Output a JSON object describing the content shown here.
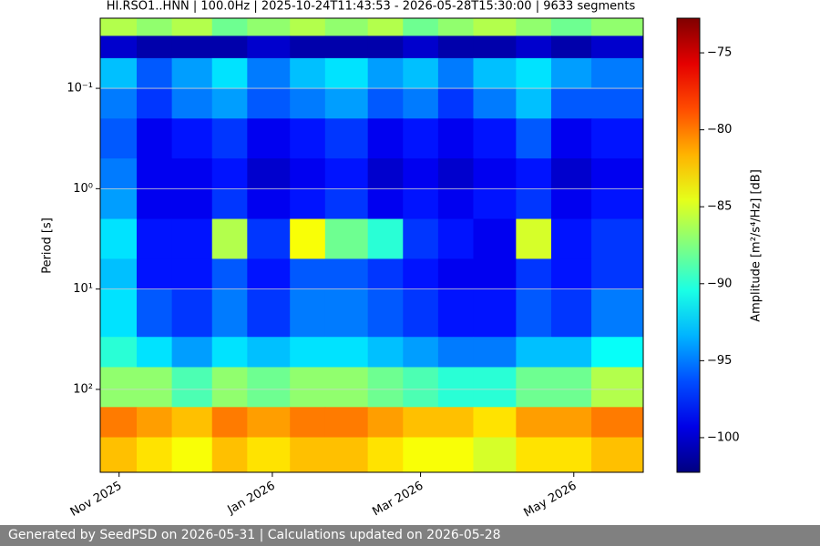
{
  "chart_data": {
    "type": "spectrogram",
    "title": "HI.RSO1..HNN | 100.0Hz | 2025-10-24T11:43:53 - 2026-05-28T15:30:00 | 9633 segments",
    "y_label": "Period [s]",
    "colorbar_label": "Amplitude [m²/s⁴/Hz] [dB]",
    "colormap": "jet",
    "y_log": true,
    "y_inverted": true,
    "grid": true,
    "xlim": [
      "2025-10-24T11:43:53",
      "2026-05-28T15:30:00"
    ],
    "xticks": [
      {
        "value": "2025-11",
        "label": "Nov 2025"
      },
      {
        "value": "2026-01",
        "label": "Jan 2026"
      },
      {
        "value": "2026-03",
        "label": "Mar 2026"
      },
      {
        "value": "2026-05",
        "label": "May 2026"
      }
    ],
    "ylim": [
      0.02,
      670
    ],
    "yticks": [
      {
        "value": 0.1,
        "label": "10⁻¹"
      },
      {
        "value": 1,
        "label": "10⁰"
      },
      {
        "value": 10,
        "label": "10¹"
      },
      {
        "value": 100,
        "label": "10²"
      }
    ],
    "clim": [
      -102.25,
      -72.75
    ],
    "cticks": [
      {
        "value": -100,
        "label": "−100"
      },
      {
        "value": -95,
        "label": "−95"
      },
      {
        "value": -90,
        "label": "−90"
      },
      {
        "value": -85,
        "label": "−85"
      },
      {
        "value": -80,
        "label": "−80"
      },
      {
        "value": -75,
        "label": "−75"
      }
    ],
    "time_bins": [
      "2025-10-24T11:43:53",
      "2025-11-08",
      "2025-11-22",
      "2025-12-08",
      "2025-12-22",
      "2026-01-08",
      "2026-01-22",
      "2026-02-08",
      "2026-02-22",
      "2026-03-08",
      "2026-03-22",
      "2026-04-08",
      "2026-04-22",
      "2026-05-08",
      "2026-05-28T15:30:00"
    ],
    "period_bins": [
      0.02,
      0.03,
      0.05,
      0.1,
      0.2,
      0.5,
      1,
      2,
      5,
      10,
      30,
      60,
      150,
      300,
      670
    ],
    "values": [
      [
        -86,
        -87,
        -86,
        -88,
        -87,
        -86,
        -87,
        -86,
        -88,
        -87,
        -86,
        -87,
        -88,
        -87
      ],
      [
        -100,
        -101,
        -101,
        -101,
        -100,
        -101,
        -101,
        -101,
        -100,
        -101,
        -101,
        -100,
        -101,
        -100
      ],
      [
        -93,
        -96,
        -94,
        -92,
        -95,
        -93,
        -92,
        -94,
        -93,
        -95,
        -93,
        -92,
        -94,
        -95
      ],
      [
        -95,
        -97,
        -95,
        -94,
        -96,
        -95,
        -94,
        -96,
        -95,
        -97,
        -95,
        -93,
        -96,
        -96
      ],
      [
        -96,
        -99,
        -98,
        -97,
        -99,
        -98,
        -97,
        -99,
        -98,
        -99,
        -98,
        -96,
        -99,
        -98
      ],
      [
        -95,
        -99,
        -99,
        -98,
        -100,
        -99,
        -98,
        -100,
        -99,
        -100,
        -99,
        -98,
        -100,
        -99
      ],
      [
        -94,
        -99,
        -99,
        -97,
        -99,
        -98,
        -97,
        -99,
        -98,
        -99,
        -98,
        -97,
        -99,
        -98
      ],
      [
        -92,
        -98,
        -98,
        -86,
        -97,
        -84,
        -88,
        -90,
        -97,
        -98,
        -99,
        -85,
        -98,
        -97
      ],
      [
        -93,
        -98,
        -98,
        -96,
        -98,
        -96,
        -96,
        -97,
        -98,
        -99,
        -99,
        -97,
        -98,
        -97
      ],
      [
        -92,
        -96,
        -97,
        -95,
        -97,
        -95,
        -95,
        -96,
        -97,
        -98,
        -98,
        -96,
        -97,
        -95
      ],
      [
        -90,
        -92,
        -94,
        -92,
        -93,
        -92,
        -92,
        -93,
        -94,
        -95,
        -95,
        -93,
        -93,
        -91
      ],
      [
        -87,
        -87,
        -89,
        -87,
        -88,
        -87,
        -87,
        -88,
        -89,
        -90,
        -90,
        -88,
        -88,
        -86
      ],
      [
        -80,
        -81,
        -82,
        -80,
        -81,
        -80,
        -80,
        -81,
        -82,
        -82,
        -83,
        -81,
        -81,
        -80
      ],
      [
        -82,
        -83,
        -84,
        -82,
        -83,
        -82,
        -82,
        -83,
        -84,
        -84,
        -85,
        -83,
        -83,
        -82
      ]
    ]
  },
  "footer": "Generated by SeedPSD on 2026-05-31 | Calculations updated on 2026-05-28"
}
